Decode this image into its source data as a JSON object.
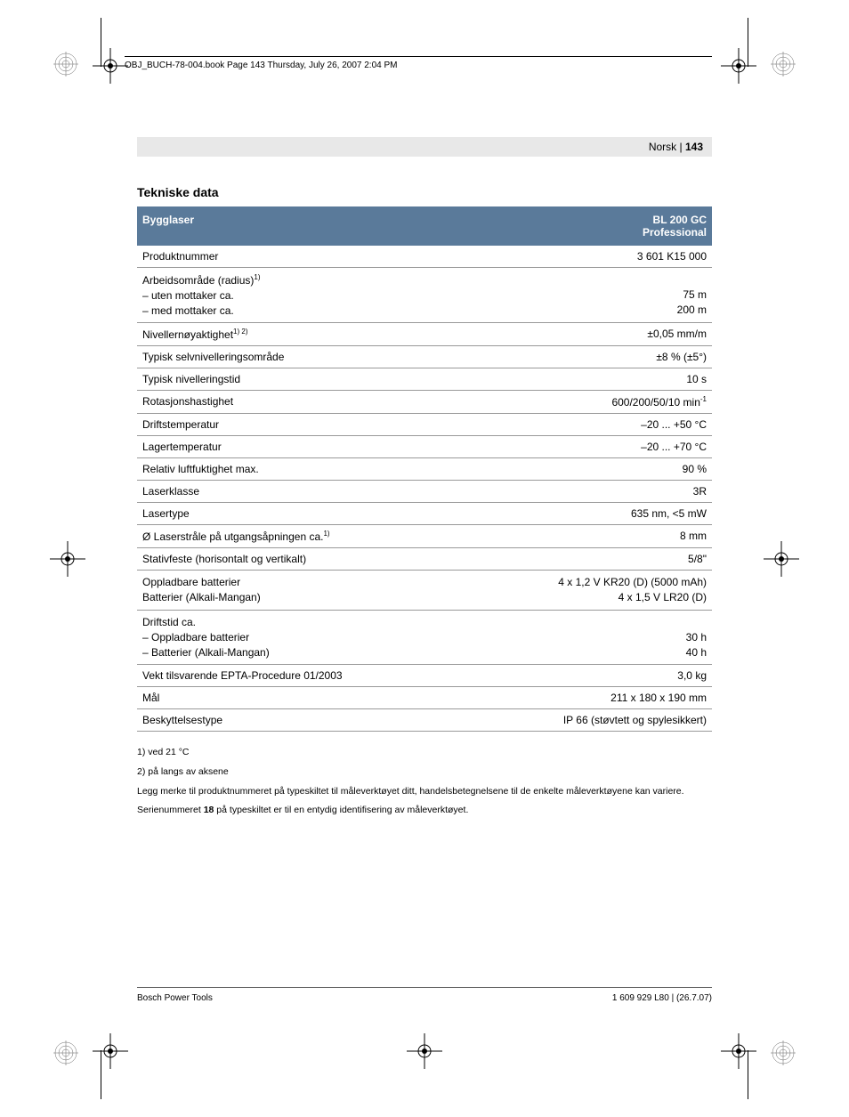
{
  "header_stamp": "OBJ_BUCH-78-004.book  Page 143  Thursday, July 26, 2007  2:04 PM",
  "page_header": {
    "lang": "Norsk",
    "sep": " | ",
    "page": "143"
  },
  "section_title": "Tekniske data",
  "table": {
    "header": {
      "left": "Bygglaser",
      "right_line1": "BL 200 GC",
      "right_line2": "Professional"
    },
    "rows": [
      {
        "label": "Produktnummer",
        "value": "3 601 K15 000"
      },
      {
        "label_html": "Arbeidsområde (radius)<sup>1)</sup><br>– uten mottaker ca.<br>– med mottaker ca.",
        "value_html": "<br>75 m<br>200 m",
        "multi": true
      },
      {
        "label_html": "Nivellernøyaktighet<sup>1) 2)</sup>",
        "value": "±0,05 mm/m"
      },
      {
        "label": "Typisk selvnivelleringsområde",
        "value": "±8 % (±5°)"
      },
      {
        "label": "Typisk nivelleringstid",
        "value": "10 s"
      },
      {
        "label": "Rotasjonshastighet",
        "value_html": "600/200/50/10 min<sup>-1</sup>"
      },
      {
        "label": "Driftstemperatur",
        "value": "–20 ... +50 °C"
      },
      {
        "label": "Lagertemperatur",
        "value": "–20 ... +70 °C"
      },
      {
        "label": "Relativ luftfuktighet max.",
        "value": "90 %"
      },
      {
        "label": "Laserklasse",
        "value": "3R"
      },
      {
        "label": "Lasertype",
        "value": "635 nm, <5 mW"
      },
      {
        "label_html": "Ø Laserstråle på utgangsåpningen ca.<sup>1)</sup>",
        "value": "8 mm"
      },
      {
        "label": "Stativfeste (horisontalt og vertikalt)",
        "value": "5/8\""
      },
      {
        "label_html": "Oppladbare batterier<br>Batterier (Alkali-Mangan)",
        "value_html": "4 x 1,2 V KR20 (D) (5000 mAh)<br>4 x 1,5 V LR20 (D)",
        "multi": true
      },
      {
        "label_html": "Driftstid ca.<br>– Oppladbare batterier<br>– Batterier (Alkali-Mangan)",
        "value_html": "<br>30 h<br>40 h",
        "multi": true
      },
      {
        "label": "Vekt tilsvarende EPTA-Procedure 01/2003",
        "value": "3,0 kg"
      },
      {
        "label": "Mål",
        "value": "211 x 180 x 190 mm"
      },
      {
        "label": "Beskyttelsestype",
        "value": "IP 66 (støvtett og spylesikkert)"
      }
    ]
  },
  "notes": [
    "1) ved 21 °C",
    "2) på langs av aksene",
    "Legg merke til produktnummeret på typeskiltet til måleverktøyet ditt, handelsbetegnelsene til de enkelte måleverktøyene kan variere.",
    "Serienummeret <b>18</b> på typeskiltet er til en entydig identifisering av måleverktøyet."
  ],
  "footer": {
    "left": "Bosch Power Tools",
    "right": "1 609 929 L80 | (26.7.07)"
  }
}
